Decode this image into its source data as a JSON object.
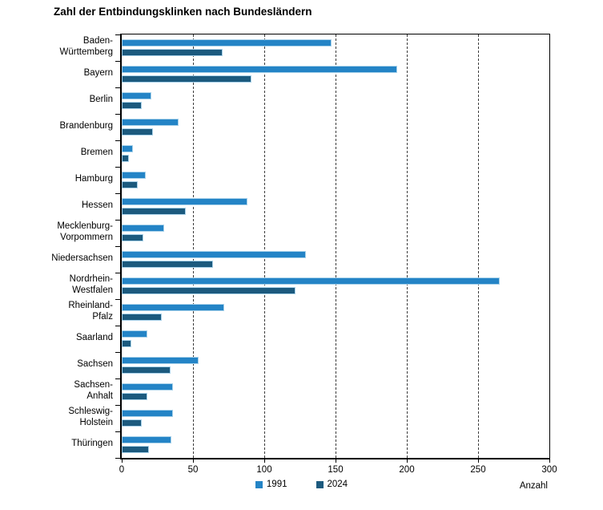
{
  "title": "Zahl der Entbindungsklinken nach Bundesländern",
  "colors": {
    "series_1991": "#2484c6",
    "series_2024": "#1c5a7e",
    "bar_outline": "#a9d2ea",
    "axis": "#000000",
    "gridline": "#3c3c3c"
  },
  "chart_data": {
    "type": "bar",
    "orientation": "horizontal",
    "title": "Zahl der Entbindungsklinken nach Bundesländern",
    "xlabel": "Anzahl",
    "ylabel": "",
    "xlim": [
      0,
      300
    ],
    "x_ticks": [
      0,
      50,
      100,
      150,
      200,
      250,
      300
    ],
    "gridlines": [
      50,
      100,
      150,
      200,
      250
    ],
    "grid": "vertical-dashed",
    "legend_position": "bottom-center",
    "categories": [
      "Baden-Württemberg",
      "Bayern",
      "Berlin",
      "Brandenburg",
      "Bremen",
      "Hamburg",
      "Hessen",
      "Mecklenburg-Vorpommern",
      "Niedersachsen",
      "Nordrhein-Westfalen",
      "Rheinland-Pfalz",
      "Saarland",
      "Sachsen",
      "Sachsen-Anhalt",
      "Schleswig-Holstein",
      "Thüringen"
    ],
    "label_lines": [
      [
        "Baden-",
        "Württemberg"
      ],
      [
        "Bayern"
      ],
      [
        "Berlin"
      ],
      [
        "Brandenburg"
      ],
      [
        "Bremen"
      ],
      [
        "Hamburg"
      ],
      [
        "Hessen"
      ],
      [
        "Mecklenburg-",
        "Vorpommern"
      ],
      [
        "Niedersachsen"
      ],
      [
        "Nordrhein-",
        "Westfalen"
      ],
      [
        "Rheinland-",
        "Pfalz"
      ],
      [
        "Saarland"
      ],
      [
        "Sachsen"
      ],
      [
        "Sachsen-",
        "Anhalt"
      ],
      [
        "Schleswig-",
        "Holstein"
      ],
      [
        "Thüringen"
      ]
    ],
    "series": [
      {
        "name": "1991",
        "color": "#2484c6",
        "values": [
          147,
          193,
          21,
          40,
          8,
          17,
          88,
          30,
          129,
          265,
          72,
          18,
          54,
          36,
          36,
          35
        ]
      },
      {
        "name": "2024",
        "color": "#1c5a7e",
        "values": [
          71,
          91,
          14,
          22,
          5,
          11,
          45,
          15,
          64,
          122,
          28,
          7,
          34,
          18,
          14,
          19
        ]
      }
    ]
  }
}
